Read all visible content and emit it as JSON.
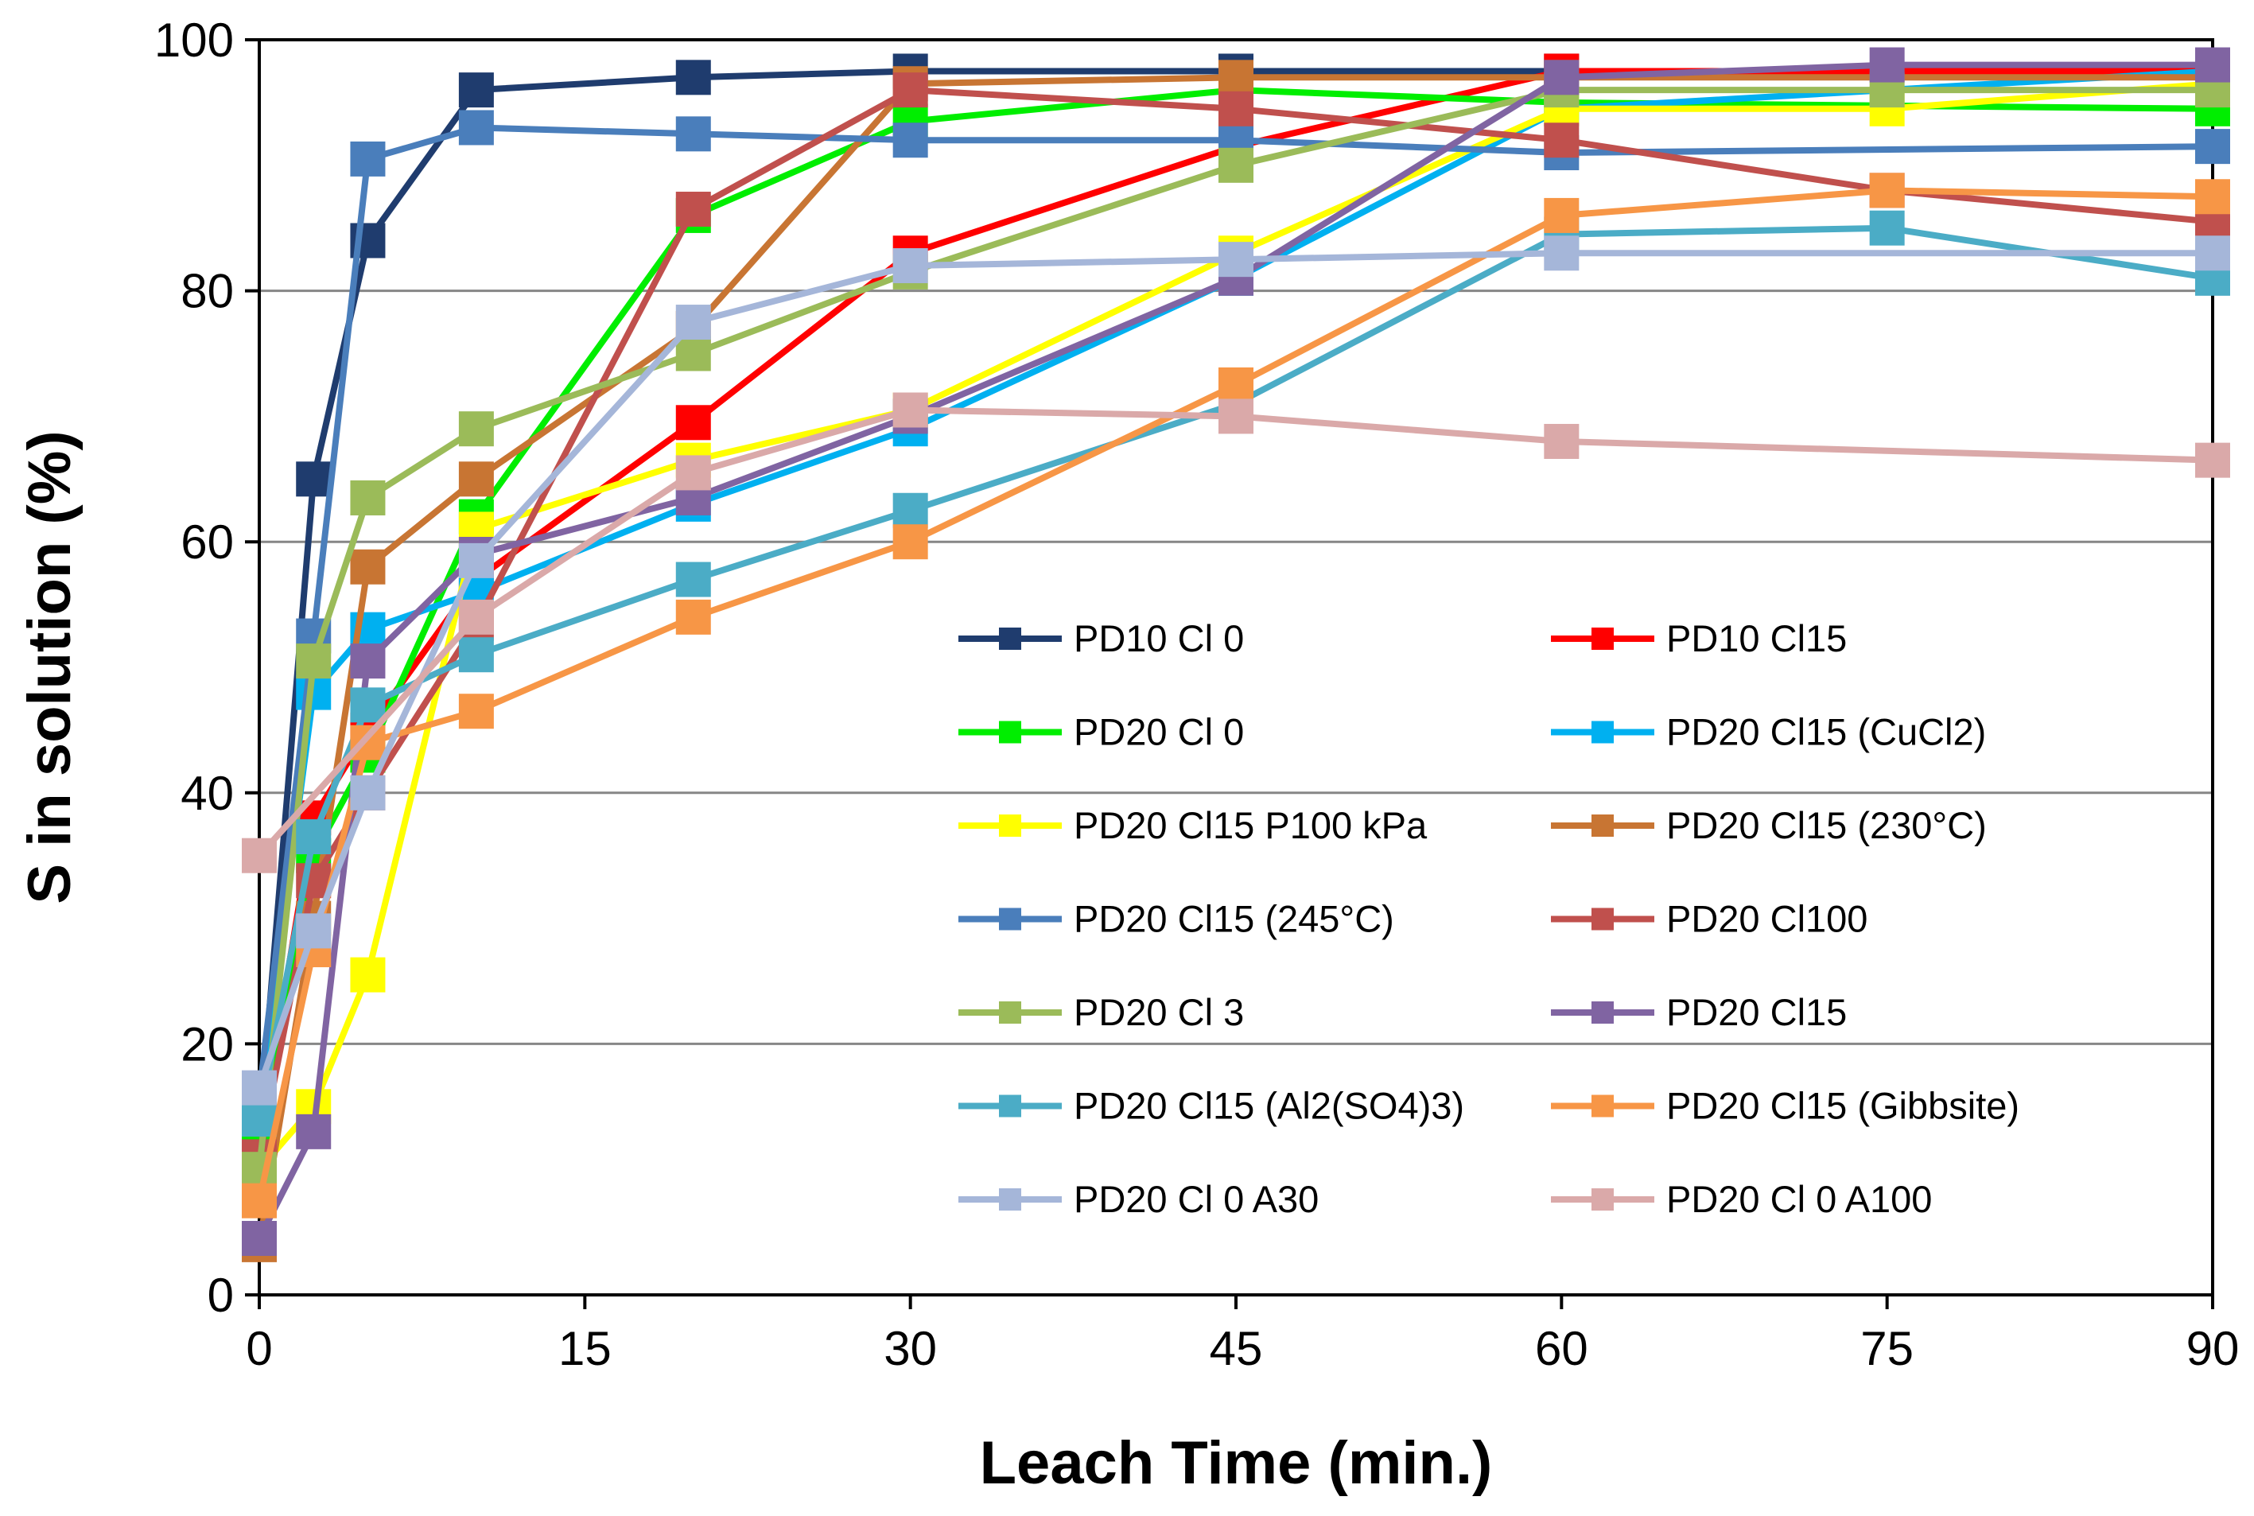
{
  "chart_data": {
    "type": "line",
    "title": "",
    "xlabel": "Leach Time (min.)",
    "ylabel": "S in solution (%)",
    "xlim": [
      0,
      90
    ],
    "ylim": [
      0,
      100
    ],
    "x_ticks": [
      "0",
      "15",
      "30",
      "45",
      "60",
      "75",
      "90"
    ],
    "y_ticks": [
      "0",
      "20",
      "40",
      "60",
      "80",
      "100"
    ],
    "grid": "horizontal",
    "legend_position": "lower-right inside plot",
    "series": [
      {
        "name": "PD10 Cl 0",
        "color": "#1F3C6E",
        "x": [
          0,
          2.5,
          5,
          10,
          20,
          30,
          45,
          60,
          90
        ],
        "y": [
          13,
          65,
          84,
          96,
          97,
          97.5,
          97.5,
          97.5,
          97.5
        ]
      },
      {
        "name": "PD10 Cl15",
        "color": "#FF0000",
        "x": [
          0,
          2.5,
          5,
          10,
          20,
          30,
          45,
          60,
          90
        ],
        "y": [
          12,
          38,
          45,
          57,
          69.5,
          83,
          91.5,
          97.5,
          97.5
        ]
      },
      {
        "name": "PD20 Cl 0",
        "color": "#00EE00",
        "x": [
          0,
          2.5,
          5,
          10,
          20,
          30,
          45,
          60,
          90
        ],
        "y": [
          12,
          35,
          43,
          62,
          86,
          93.5,
          96,
          95,
          94.5
        ]
      },
      {
        "name": "PD20 Cl15 (CuCl2)",
        "color": "#00B0F0",
        "x": [
          0,
          2.5,
          5,
          10,
          20,
          30,
          45,
          60,
          90
        ],
        "y": [
          15,
          48,
          53,
          56,
          63,
          69,
          81,
          94.5,
          97.5
        ]
      },
      {
        "name": "PD20 Cl15 P100 kPa",
        "color": "#FFFF00",
        "x": [
          0,
          2.5,
          5,
          10,
          20,
          30,
          45,
          60,
          75,
          90
        ],
        "y": [
          10,
          15,
          25.5,
          61,
          66.5,
          70.5,
          83,
          94.5,
          94.5,
          96.5
        ]
      },
      {
        "name": "PD20 Cl15 (230°C)",
        "color": "#C87533",
        "x": [
          0,
          2.5,
          5,
          10,
          20,
          30,
          45,
          60,
          90
        ],
        "y": [
          4,
          30,
          58,
          65,
          77,
          96.5,
          97,
          97,
          97
        ]
      },
      {
        "name": "PD20 Cl15 (245°C)",
        "color": "#4A7EBB",
        "x": [
          0,
          2.5,
          5,
          10,
          20,
          30,
          45,
          60,
          90
        ],
        "y": [
          16,
          52.5,
          90.5,
          93,
          92.5,
          92,
          92,
          91,
          91.5
        ]
      },
      {
        "name": "PD20 Cl100",
        "color": "#C0504D",
        "x": [
          0,
          2.5,
          5,
          10,
          20,
          30,
          45,
          60,
          75,
          90
        ],
        "y": [
          11,
          33,
          40,
          53.5,
          86.5,
          96,
          94.5,
          92,
          88,
          85.5
        ]
      },
      {
        "name": "PD20 Cl 3",
        "color": "#9BBB59",
        "x": [
          0,
          2.5,
          5,
          10,
          20,
          30,
          45,
          60,
          75,
          90
        ],
        "y": [
          10,
          50.5,
          63.5,
          69,
          75,
          81.5,
          90,
          96,
          96,
          96
        ]
      },
      {
        "name": "PD20 Cl15",
        "color": "#8064A2",
        "x": [
          0,
          2.5,
          5,
          10,
          20,
          30,
          45,
          60,
          75,
          90
        ],
        "y": [
          4.5,
          13,
          50.5,
          59,
          63.5,
          70,
          81,
          97,
          98,
          98
        ]
      },
      {
        "name": "PD20 Cl15 (Al2(SO4)3)",
        "color": "#4BACC6",
        "x": [
          0,
          2.5,
          5,
          10,
          20,
          30,
          45,
          60,
          75,
          90
        ],
        "y": [
          14,
          36.5,
          47,
          51,
          57,
          62.5,
          71,
          84.5,
          85,
          81
        ]
      },
      {
        "name": "PD20 Cl15 (Gibbsite)",
        "color": "#F79646",
        "x": [
          0,
          2.5,
          5,
          10,
          20,
          30,
          45,
          60,
          75,
          90
        ],
        "y": [
          7.5,
          27.5,
          44,
          46.5,
          54,
          60,
          72.5,
          86,
          88,
          87.5
        ]
      },
      {
        "name": "PD20 Cl 0 A30",
        "color": "#A5B6D9",
        "x": [
          0,
          2.5,
          5,
          10,
          20,
          30,
          45,
          60,
          90
        ],
        "y": [
          16.5,
          29,
          40,
          58.5,
          77.5,
          82,
          82.5,
          83,
          83
        ]
      },
      {
        "name": "PD20 Cl 0 A100",
        "color": "#DAA9A9",
        "x": [
          0,
          10,
          20,
          30,
          45,
          60,
          90
        ],
        "y": [
          35,
          54,
          65.5,
          70.5,
          70,
          68,
          66.5
        ]
      }
    ]
  }
}
